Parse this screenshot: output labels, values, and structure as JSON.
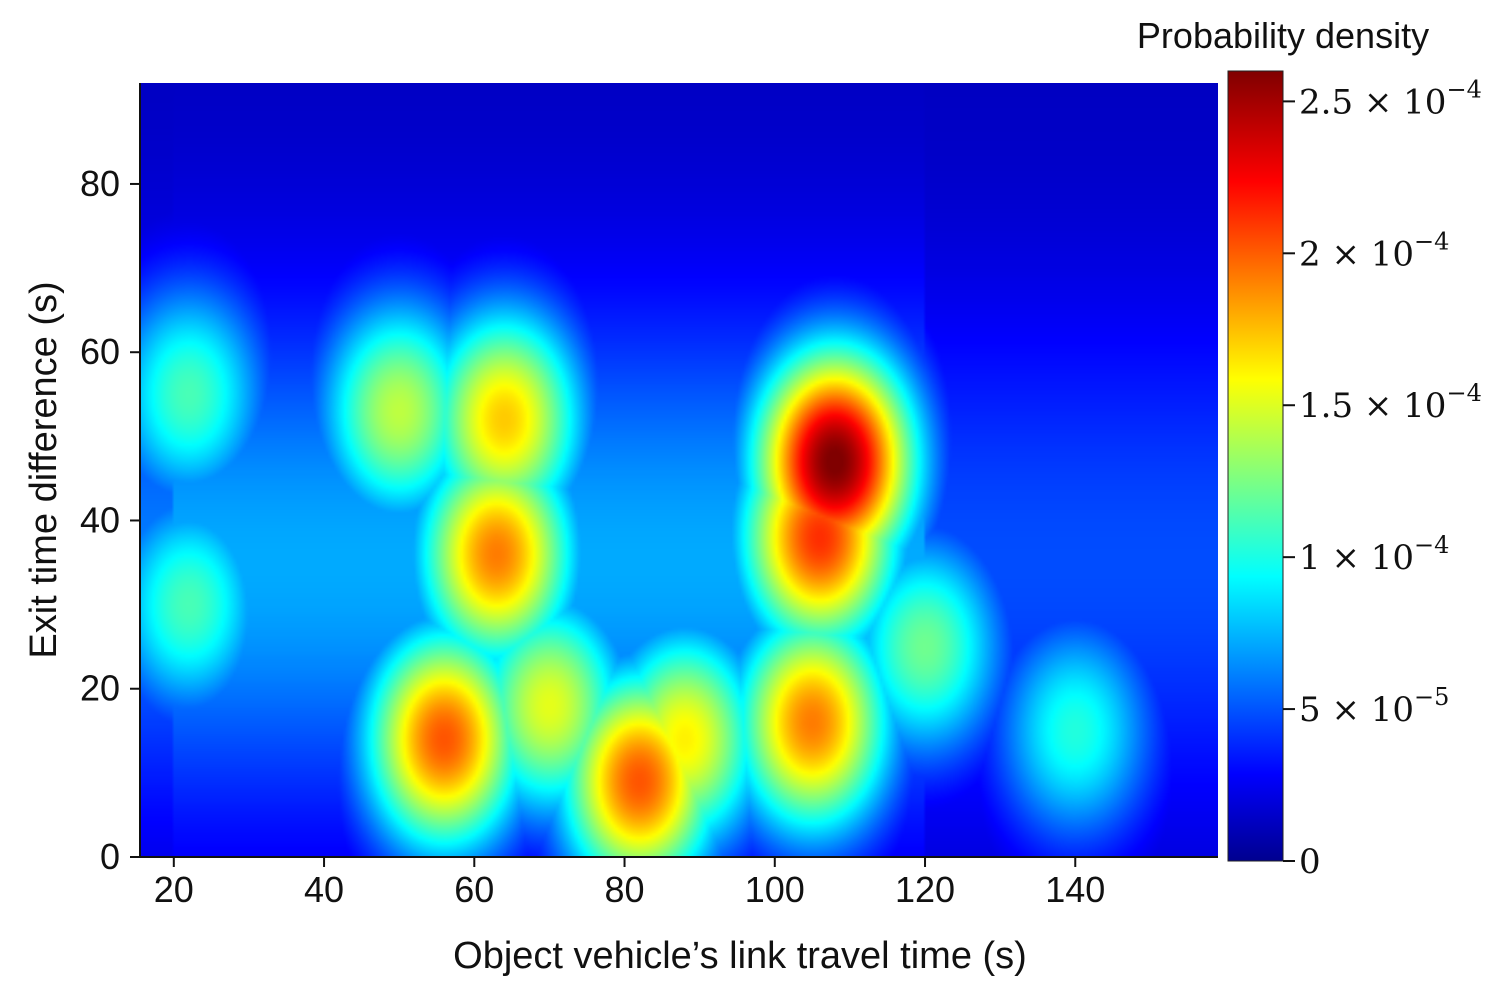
{
  "chart_data": {
    "type": "heatmap",
    "title": "",
    "xlabel": "Object vehicle’s link travel time (s)",
    "ylabel": "Exit time difference (s)",
    "xlim": [
      15.5,
      159
    ],
    "ylim": [
      0,
      92
    ],
    "x_ticks": [
      20,
      40,
      60,
      80,
      100,
      120,
      140
    ],
    "y_ticks": [
      0,
      20,
      40,
      60,
      80
    ],
    "colorbar": {
      "title": "Probability density",
      "range": [
        0,
        0.00026
      ],
      "colormap": "jet",
      "ticks": [
        {
          "value": 0,
          "mantissa": "0",
          "exponent": ""
        },
        {
          "value": 5e-05,
          "mantissa": "5 × 10",
          "exponent": "−5"
        },
        {
          "value": 0.0001,
          "mantissa": "1 × 10",
          "exponent": "−4"
        },
        {
          "value": 0.00015,
          "mantissa": "1.5 × 10",
          "exponent": "−4"
        },
        {
          "value": 0.0002,
          "mantissa": "2 × 10",
          "exponent": "−4"
        },
        {
          "value": 0.00025,
          "mantissa": "2.5 × 10",
          "exponent": "−4"
        }
      ]
    },
    "density_peaks": [
      {
        "x": 108,
        "y": 47,
        "density": 0.00025
      },
      {
        "x": 106,
        "y": 38,
        "density": 0.0002
      },
      {
        "x": 56,
        "y": 14,
        "density": 0.00019
      },
      {
        "x": 82,
        "y": 9,
        "density": 0.00019
      },
      {
        "x": 63,
        "y": 36,
        "density": 0.00018
      },
      {
        "x": 64,
        "y": 52,
        "density": 0.00016
      },
      {
        "x": 105,
        "y": 16,
        "density": 0.00018
      },
      {
        "x": 88,
        "y": 14,
        "density": 0.00015
      },
      {
        "x": 50,
        "y": 53,
        "density": 0.00013
      },
      {
        "x": 70,
        "y": 18,
        "density": 0.00014
      },
      {
        "x": 120,
        "y": 25,
        "density": 0.00011
      },
      {
        "x": 22,
        "y": 30,
        "density": 0.0001
      },
      {
        "x": 22,
        "y": 55,
        "density": 0.0001
      },
      {
        "x": 140,
        "y": 15,
        "density": 9e-05
      }
    ]
  }
}
